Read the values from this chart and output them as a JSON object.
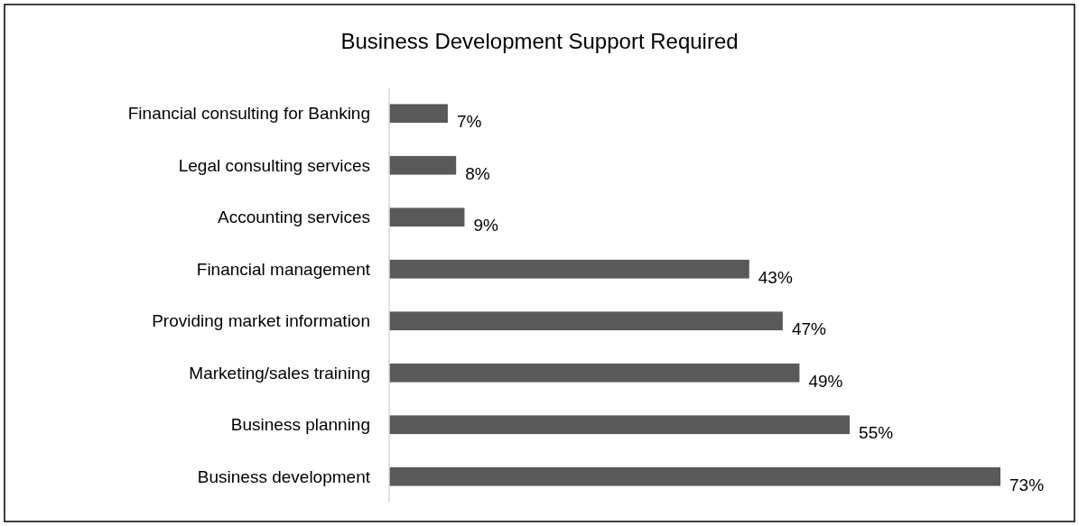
{
  "chart_data": {
    "type": "bar",
    "orientation": "horizontal",
    "title": "Business Development Support Required",
    "categories": [
      "Financial consulting for Banking",
      "Legal consulting services",
      "Accounting services",
      "Financial management",
      "Providing market information",
      "Marketing/sales training",
      "Business planning",
      "Business development"
    ],
    "values": [
      7,
      8,
      9,
      43,
      47,
      49,
      55,
      73
    ],
    "value_labels": [
      "7%",
      "8%",
      "9%",
      "43%",
      "47%",
      "49%",
      "55%",
      "73%"
    ],
    "color": "#595959"
  }
}
